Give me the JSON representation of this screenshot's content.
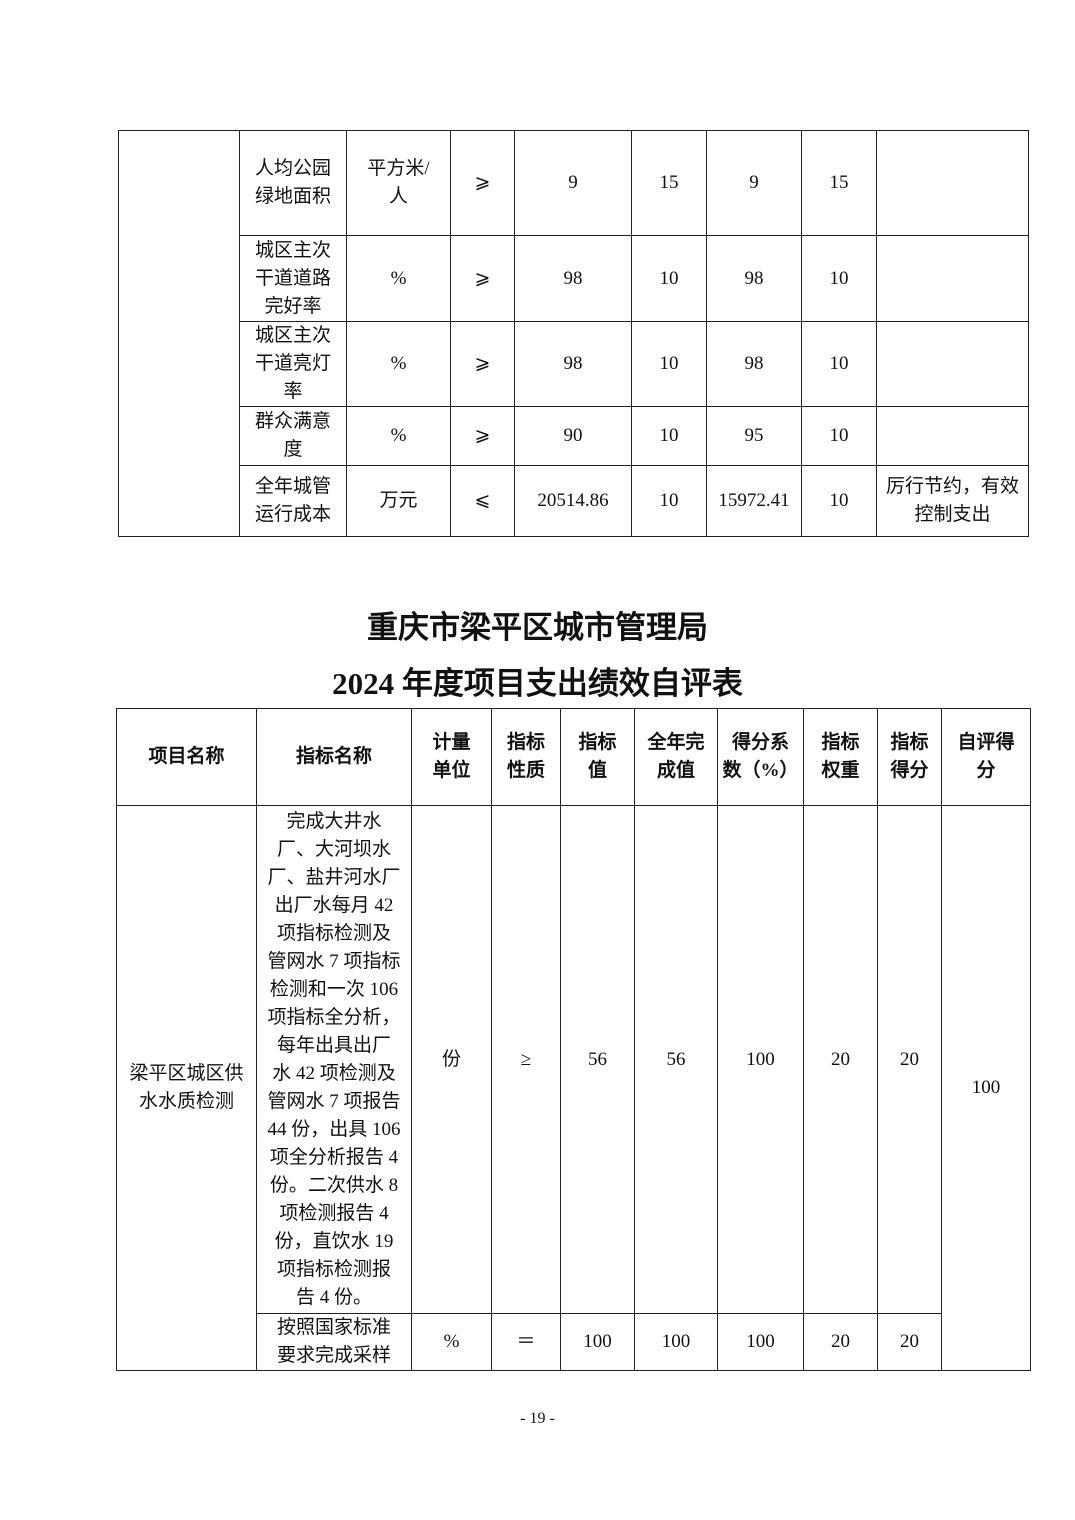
{
  "top_table": {
    "rows": [
      [
        "人均公园\n绿地面积",
        "平方米/\n人",
        "⩾",
        "9",
        "15",
        "9",
        "15",
        ""
      ],
      [
        "城区主次\n干道道路\n完好率",
        "%",
        "⩾",
        "98",
        "10",
        "98",
        "10",
        ""
      ],
      [
        "城区主次\n干道亮灯\n率",
        "%",
        "⩾",
        "98",
        "10",
        "98",
        "10",
        ""
      ],
      [
        "群众满意\n度",
        "%",
        "⩾",
        "90",
        "10",
        "95",
        "10",
        ""
      ],
      [
        "全年城管\n运行成本",
        "万元",
        "⩽",
        "20514.86",
        "10",
        "15972.41",
        "10",
        "厉行节约，有效\n控制支出"
      ]
    ]
  },
  "title": {
    "line1": "重庆市梁平区城市管理局",
    "line2": "2024 年度项目支出绩效自评表"
  },
  "bottom_table": {
    "headers": [
      "项目名称",
      "指标名称",
      "计量\n单位",
      "指标\n性质",
      "指标\n值",
      "全年完\n成值",
      "得分系\n数（%）",
      "指标\n权重",
      "指标\n得分",
      "自评得\n分"
    ],
    "project_name": "梁平区城区供\n水水质检测",
    "self_score": "100",
    "rows": [
      [
        "  完成大井水\n厂、大河坝水\n厂、盐井河水厂\n出厂水每月 42\n项指标检测及\n管网水 7 项指标\n检测和一次 106\n项指标全分析，\n每年出具出厂\n水 42 项检测及\n管网水 7 项报告\n44 份，出具 106\n项全分析报告 4\n份。二次供水 8\n项检测报告 4\n份，直饮水 19\n项指标检测报\n告 4 份。",
        "份",
        "≥",
        "56",
        "56",
        "100",
        "20",
        "20"
      ],
      [
        "按照国家标准\n要求完成采样",
        "%",
        "＝",
        "100",
        "100",
        "100",
        "20",
        "20"
      ]
    ]
  },
  "page_number": "- 19 -"
}
